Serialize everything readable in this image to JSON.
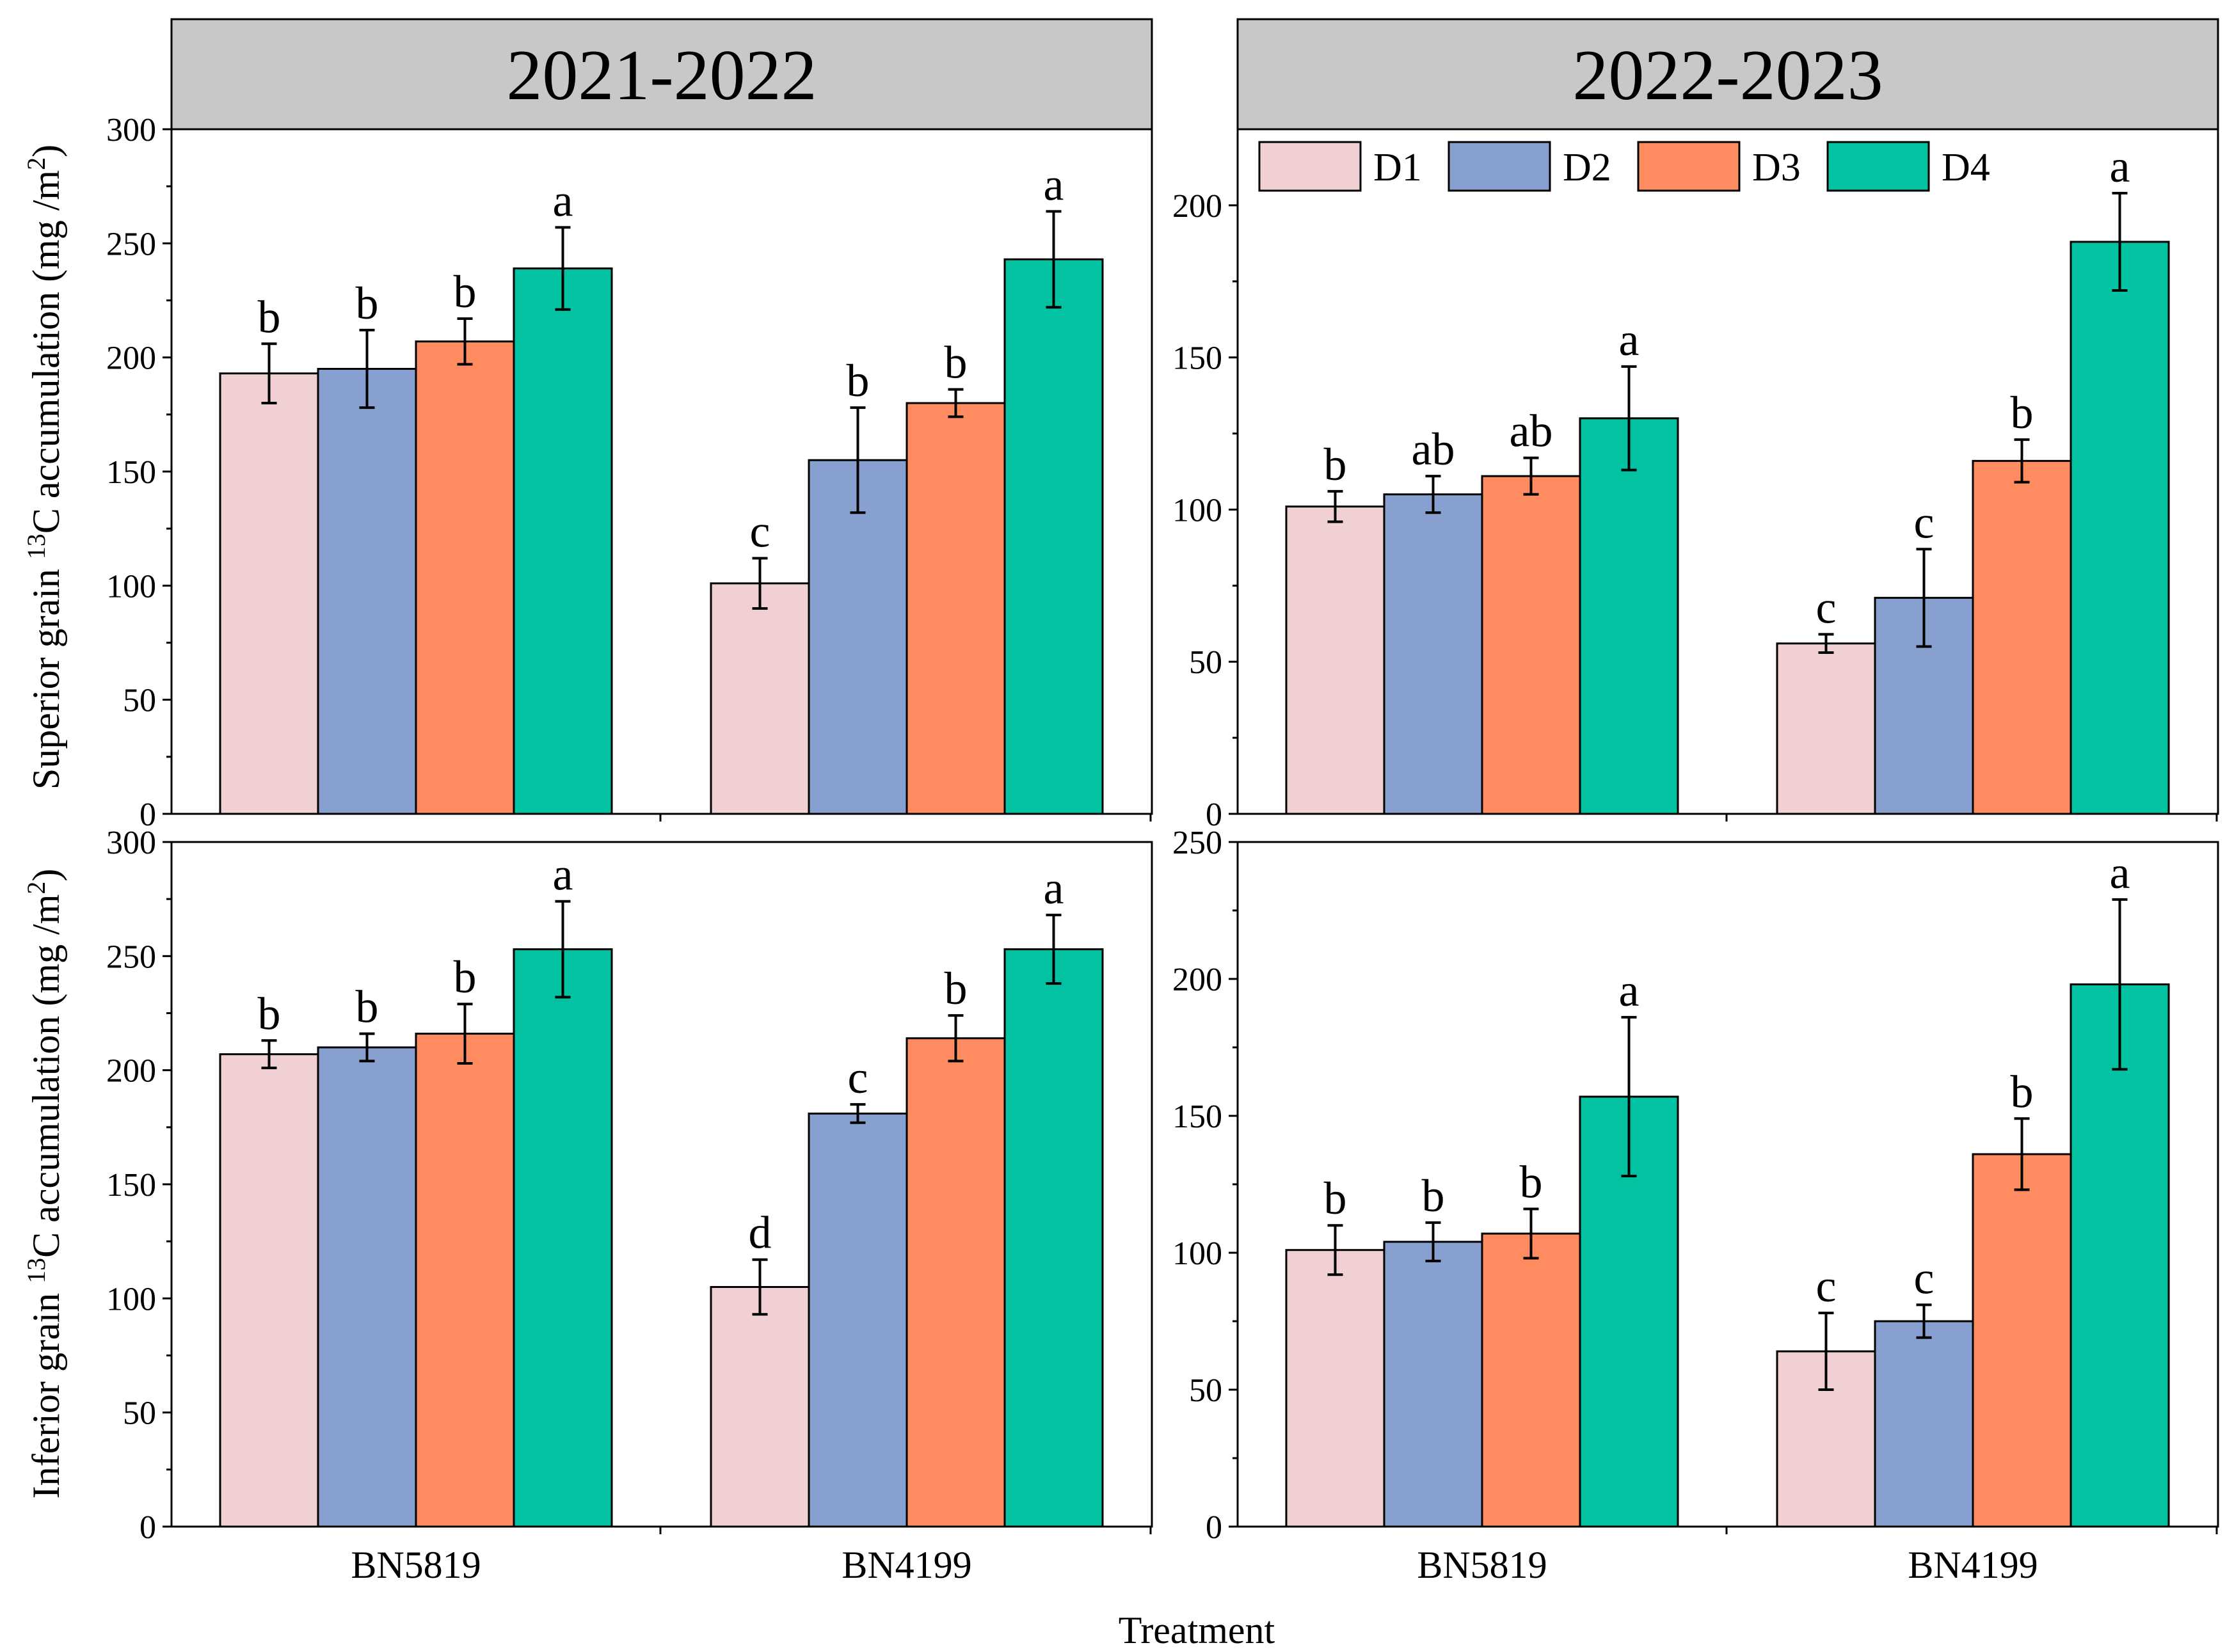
{
  "figure": {
    "xlabel": "Treatment",
    "ylabel_superior": [
      "Superior grain ",
      "13",
      "C accumulation (mg /m",
      "2",
      ")"
    ],
    "ylabel_inferior": [
      "Inferior grain ",
      "13",
      "C accumulation (mg /m",
      "2",
      ")"
    ],
    "headers": [
      "2021-2022",
      "2022-2023"
    ]
  },
  "legend": {
    "items": [
      {
        "label": "D1",
        "color": "#f0d0d3"
      },
      {
        "label": "D2",
        "color": "#88a0cf"
      },
      {
        "label": "D3",
        "color": "#fe8c60"
      },
      {
        "label": "D4",
        "color": "#03c2a2"
      }
    ]
  },
  "chart_data": [
    {
      "type": "bar",
      "panel": "2021-2022 superior grain",
      "categories": [
        "BN5819",
        "BN4199"
      ],
      "ylim": [
        0,
        300
      ],
      "yticks": [
        "0",
        "50",
        "100",
        "150",
        "200",
        "250",
        "300"
      ],
      "series": [
        {
          "name": "D1",
          "values": [
            193,
            101
          ],
          "errors": [
            13,
            11
          ],
          "letters": [
            "b",
            "c"
          ]
        },
        {
          "name": "D2",
          "values": [
            195,
            155
          ],
          "errors": [
            17,
            23
          ],
          "letters": [
            "b",
            "b"
          ]
        },
        {
          "name": "D3",
          "values": [
            207,
            180
          ],
          "errors": [
            10,
            6
          ],
          "letters": [
            "b",
            "b"
          ]
        },
        {
          "name": "D4",
          "values": [
            239,
            243
          ],
          "errors": [
            18,
            21
          ],
          "letters": [
            "a",
            "a"
          ]
        }
      ]
    },
    {
      "type": "bar",
      "panel": "2022-2023 superior grain",
      "categories": [
        "BN5819",
        "BN4199"
      ],
      "ylim": [
        0,
        225
      ],
      "yticks": [
        "0",
        "50",
        "100",
        "150",
        "200"
      ],
      "series": [
        {
          "name": "D1",
          "values": [
            101,
            56
          ],
          "errors": [
            5,
            3
          ],
          "letters": [
            "b",
            "c"
          ]
        },
        {
          "name": "D2",
          "values": [
            105,
            71
          ],
          "errors": [
            6,
            16
          ],
          "letters": [
            "ab",
            "c"
          ]
        },
        {
          "name": "D3",
          "values": [
            111,
            116
          ],
          "errors": [
            6,
            7
          ],
          "letters": [
            "ab",
            "b"
          ]
        },
        {
          "name": "D4",
          "values": [
            130,
            188
          ],
          "errors": [
            17,
            16
          ],
          "letters": [
            "a",
            "a"
          ]
        }
      ]
    },
    {
      "type": "bar",
      "panel": "2021-2022 inferior grain",
      "categories": [
        "BN5819",
        "BN4199"
      ],
      "ylim": [
        0,
        300
      ],
      "yticks": [
        "0",
        "50",
        "100",
        "150",
        "200",
        "250",
        "300"
      ],
      "series": [
        {
          "name": "D1",
          "values": [
            207,
            105
          ],
          "errors": [
            6,
            12
          ],
          "letters": [
            "b",
            "d"
          ]
        },
        {
          "name": "D2",
          "values": [
            210,
            181
          ],
          "errors": [
            6,
            4
          ],
          "letters": [
            "b",
            "c"
          ]
        },
        {
          "name": "D3",
          "values": [
            216,
            214
          ],
          "errors": [
            13,
            10
          ],
          "letters": [
            "b",
            "b"
          ]
        },
        {
          "name": "D4",
          "values": [
            253,
            253
          ],
          "errors": [
            21,
            15
          ],
          "letters": [
            "a",
            "a"
          ]
        }
      ]
    },
    {
      "type": "bar",
      "panel": "2022-2023 inferior grain",
      "categories": [
        "BN5819",
        "BN4199"
      ],
      "ylim": [
        0,
        250
      ],
      "yticks": [
        "0",
        "50",
        "100",
        "150",
        "200",
        "250"
      ],
      "series": [
        {
          "name": "D1",
          "values": [
            101,
            64
          ],
          "errors": [
            9,
            14
          ],
          "letters": [
            "b",
            "c"
          ]
        },
        {
          "name": "D2",
          "values": [
            104,
            75
          ],
          "errors": [
            7,
            6
          ],
          "letters": [
            "b",
            "c"
          ]
        },
        {
          "name": "D3",
          "values": [
            107,
            136
          ],
          "errors": [
            9,
            13
          ],
          "letters": [
            "b",
            "b"
          ]
        },
        {
          "name": "D4",
          "values": [
            157,
            198
          ],
          "errors": [
            29,
            31
          ],
          "letters": [
            "a",
            "a"
          ]
        }
      ]
    }
  ]
}
